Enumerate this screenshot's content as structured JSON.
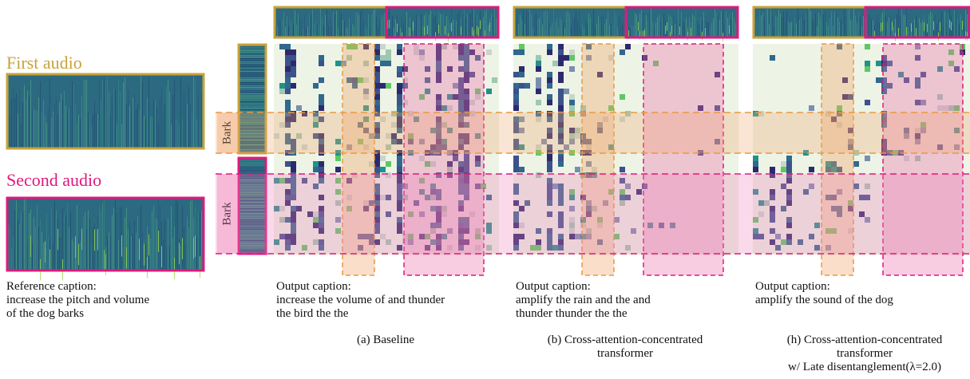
{
  "left": {
    "first_label": "First audio",
    "second_label": "Second audio",
    "reference_caption": {
      "heading": "Reference caption:",
      "lines": [
        "increase the pitch and volume",
        "of the dog barks"
      ]
    }
  },
  "row_labels": [
    "Bark",
    "Bark"
  ],
  "panels": [
    {
      "caption_heading": "Output caption:",
      "caption_lines": [
        "increase the volume of and thunder",
        "the bird the the"
      ],
      "label_lines": [
        "(a) Baseline"
      ]
    },
    {
      "caption_heading": "Output caption:",
      "caption_lines": [
        "amplify the rain and the and",
        "thunder thunder the the"
      ],
      "label_lines": [
        "(b) Cross-attention-concentrated",
        "transformer"
      ]
    },
    {
      "caption_heading": "Output caption:",
      "caption_lines": [
        "amplify the sound of the dog"
      ],
      "label_lines": [
        "(h) Cross-attention-concentrated",
        "transformer",
        "w/ Late disentanglement(λ=2.0)"
      ]
    }
  ]
}
